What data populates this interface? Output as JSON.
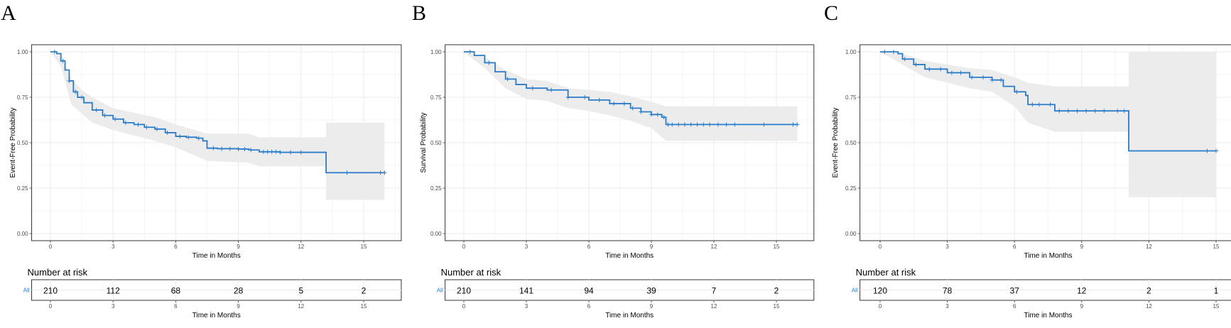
{
  "colors": {
    "curve": "#2A7CC9",
    "band": "#EBEBEB",
    "grid": "#EBEBEB",
    "border": "#333333"
  },
  "chart_data": [
    {
      "panel": "A",
      "type": "line",
      "ylabel": "Event-Free Probability",
      "xlabel": "Time in Months",
      "xlim": [
        0,
        16.2
      ],
      "ylim": [
        0,
        1
      ],
      "x_ticks": [
        0,
        3,
        6,
        9,
        12,
        15
      ],
      "y_ticks": [
        0.0,
        0.25,
        0.5,
        0.75,
        1.0
      ],
      "y_tick_labels": [
        "0.00",
        "0.25",
        "0.50",
        "0.75",
        "1.00"
      ],
      "grid": true,
      "confidence_band": true,
      "curve": [
        [
          0,
          1.0
        ],
        [
          0.3,
          0.99
        ],
        [
          0.5,
          0.95
        ],
        [
          0.7,
          0.9
        ],
        [
          0.9,
          0.84
        ],
        [
          1.1,
          0.78
        ],
        [
          1.3,
          0.75
        ],
        [
          1.6,
          0.72
        ],
        [
          2.0,
          0.68
        ],
        [
          2.5,
          0.65
        ],
        [
          3.0,
          0.63
        ],
        [
          3.5,
          0.61
        ],
        [
          4.0,
          0.6
        ],
        [
          4.5,
          0.585
        ],
        [
          5.0,
          0.575
        ],
        [
          5.5,
          0.555
        ],
        [
          6.0,
          0.535
        ],
        [
          6.5,
          0.53
        ],
        [
          7.0,
          0.525
        ],
        [
          7.3,
          0.51
        ],
        [
          7.5,
          0.47
        ],
        [
          8.0,
          0.467
        ],
        [
          9.0,
          0.465
        ],
        [
          9.5,
          0.46
        ],
        [
          10.0,
          0.45
        ],
        [
          11.0,
          0.447
        ],
        [
          12.0,
          0.447
        ],
        [
          13.2,
          0.447
        ],
        [
          13.2,
          0.335
        ],
        [
          16.0,
          0.335
        ]
      ],
      "band_upper": [
        [
          0,
          1.0
        ],
        [
          0.5,
          0.97
        ],
        [
          1.0,
          0.85
        ],
        [
          1.5,
          0.79
        ],
        [
          2.0,
          0.75
        ],
        [
          3.0,
          0.69
        ],
        [
          4.0,
          0.665
        ],
        [
          5.0,
          0.64
        ],
        [
          6.0,
          0.6
        ],
        [
          7.5,
          0.55
        ],
        [
          9.5,
          0.55
        ],
        [
          10.0,
          0.53
        ],
        [
          13.2,
          0.53
        ],
        [
          13.2,
          0.61
        ],
        [
          16.0,
          0.61
        ]
      ],
      "band_lower": [
        [
          0,
          1.0
        ],
        [
          0.5,
          0.92
        ],
        [
          1.0,
          0.71
        ],
        [
          1.5,
          0.66
        ],
        [
          2.0,
          0.61
        ],
        [
          3.0,
          0.57
        ],
        [
          4.0,
          0.54
        ],
        [
          5.0,
          0.51
        ],
        [
          6.0,
          0.475
        ],
        [
          7.5,
          0.4
        ],
        [
          9.5,
          0.39
        ],
        [
          10.0,
          0.37
        ],
        [
          13.2,
          0.37
        ],
        [
          13.2,
          0.185
        ],
        [
          16.0,
          0.185
        ]
      ],
      "censor_x": [
        0.2,
        0.6,
        0.9,
        1.2,
        1.5,
        2.2,
        2.6,
        3.1,
        3.6,
        4.2,
        4.6,
        5.1,
        5.6,
        6.2,
        6.6,
        7.1,
        7.8,
        8.2,
        8.6,
        9.0,
        9.3,
        9.6,
        10.2,
        10.4,
        10.6,
        10.8,
        11.0,
        11.5,
        12.0,
        14.2,
        15.8,
        16.0
      ],
      "risk": {
        "title": "Number at risk",
        "strata": "All",
        "values": [
          "210",
          "112",
          "68",
          "28",
          "5",
          "2"
        ],
        "xlabel": "Time in Months"
      }
    },
    {
      "panel": "B",
      "type": "line",
      "ylabel": "Survival Probability",
      "xlabel": "Time in Months",
      "xlim": [
        0,
        16.2
      ],
      "ylim": [
        0,
        1
      ],
      "x_ticks": [
        0,
        3,
        6,
        9,
        12,
        15
      ],
      "y_ticks": [
        0.0,
        0.25,
        0.5,
        0.75,
        1.0
      ],
      "y_tick_labels": [
        "0.00",
        "0.25",
        "0.50",
        "0.75",
        "1.00"
      ],
      "grid": true,
      "confidence_band": true,
      "curve": [
        [
          0,
          1.0
        ],
        [
          0.5,
          0.98
        ],
        [
          1.0,
          0.94
        ],
        [
          1.5,
          0.89
        ],
        [
          2.0,
          0.85
        ],
        [
          2.5,
          0.82
        ],
        [
          3.0,
          0.8
        ],
        [
          4.0,
          0.79
        ],
        [
          5.0,
          0.75
        ],
        [
          6.0,
          0.735
        ],
        [
          7.0,
          0.715
        ],
        [
          8.0,
          0.69
        ],
        [
          8.5,
          0.67
        ],
        [
          9.0,
          0.655
        ],
        [
          9.5,
          0.64
        ],
        [
          9.7,
          0.6
        ],
        [
          12.0,
          0.6
        ],
        [
          16.0,
          0.6
        ]
      ],
      "band_upper": [
        [
          0,
          1.0
        ],
        [
          1.0,
          0.97
        ],
        [
          2.0,
          0.9
        ],
        [
          3.0,
          0.85
        ],
        [
          4.0,
          0.84
        ],
        [
          5.0,
          0.8
        ],
        [
          6.0,
          0.79
        ],
        [
          7.0,
          0.78
        ],
        [
          8.0,
          0.755
        ],
        [
          9.0,
          0.725
        ],
        [
          9.7,
          0.7
        ],
        [
          16.0,
          0.7
        ]
      ],
      "band_lower": [
        [
          0,
          1.0
        ],
        [
          1.0,
          0.91
        ],
        [
          2.0,
          0.8
        ],
        [
          3.0,
          0.74
        ],
        [
          4.0,
          0.73
        ],
        [
          5.0,
          0.69
        ],
        [
          6.0,
          0.675
        ],
        [
          7.0,
          0.65
        ],
        [
          8.0,
          0.62
        ],
        [
          9.0,
          0.58
        ],
        [
          9.7,
          0.51
        ],
        [
          16.0,
          0.51
        ]
      ],
      "censor_x": [
        0.3,
        1.2,
        2.1,
        3.3,
        4.2,
        5.0,
        5.8,
        6.5,
        7.2,
        7.7,
        8.1,
        8.5,
        9.0,
        9.3,
        9.6,
        9.8,
        10.0,
        10.3,
        10.6,
        10.9,
        11.2,
        11.5,
        11.8,
        12.2,
        12.6,
        13.0,
        14.4,
        15.8,
        16.0
      ],
      "risk": {
        "title": "Number at risk",
        "strata": "All",
        "values": [
          "210",
          "141",
          "94",
          "39",
          "7",
          "2"
        ],
        "xlabel": "Time in Months"
      }
    },
    {
      "panel": "C",
      "type": "line",
      "ylabel": "Event-Free Probability",
      "xlabel": "Time in Months",
      "xlim": [
        0,
        15.3
      ],
      "ylim": [
        0,
        1
      ],
      "x_ticks": [
        0,
        3,
        6,
        9,
        12,
        15
      ],
      "y_ticks": [
        0.0,
        0.25,
        0.5,
        0.75,
        1.0
      ],
      "y_tick_labels": [
        "0.00",
        "0.25",
        "0.50",
        "0.75",
        "1.00"
      ],
      "grid": true,
      "confidence_band": true,
      "curve": [
        [
          0,
          1.0
        ],
        [
          0.8,
          0.99
        ],
        [
          1.0,
          0.96
        ],
        [
          1.5,
          0.93
        ],
        [
          2.0,
          0.905
        ],
        [
          3.0,
          0.885
        ],
        [
          4.0,
          0.86
        ],
        [
          5.0,
          0.845
        ],
        [
          5.5,
          0.81
        ],
        [
          6.0,
          0.78
        ],
        [
          6.5,
          0.76
        ],
        [
          6.6,
          0.71
        ],
        [
          7.5,
          0.71
        ],
        [
          7.8,
          0.675
        ],
        [
          10.5,
          0.675
        ],
        [
          11.1,
          0.675
        ],
        [
          11.1,
          0.455
        ],
        [
          15.0,
          0.455
        ]
      ],
      "band_upper": [
        [
          0,
          1.0
        ],
        [
          1.0,
          0.99
        ],
        [
          2.0,
          0.95
        ],
        [
          3.0,
          0.93
        ],
        [
          4.0,
          0.91
        ],
        [
          5.0,
          0.9
        ],
        [
          6.0,
          0.86
        ],
        [
          6.6,
          0.83
        ],
        [
          7.8,
          0.81
        ],
        [
          11.1,
          0.81
        ],
        [
          11.1,
          1.0
        ],
        [
          15.0,
          1.0
        ]
      ],
      "band_lower": [
        [
          0,
          1.0
        ],
        [
          1.0,
          0.93
        ],
        [
          2.0,
          0.86
        ],
        [
          3.0,
          0.83
        ],
        [
          4.0,
          0.8
        ],
        [
          5.0,
          0.78
        ],
        [
          6.0,
          0.7
        ],
        [
          6.6,
          0.61
        ],
        [
          7.8,
          0.56
        ],
        [
          11.1,
          0.56
        ],
        [
          11.1,
          0.2
        ],
        [
          15.0,
          0.2
        ]
      ],
      "censor_x": [
        0.2,
        0.6,
        1.1,
        1.6,
        2.2,
        2.7,
        3.2,
        3.6,
        4.1,
        4.6,
        5.0,
        5.4,
        6.1,
        6.8,
        7.1,
        7.6,
        8.0,
        8.4,
        8.8,
        9.2,
        9.6,
        10.0,
        10.6,
        10.9,
        14.6,
        15.0
      ],
      "risk": {
        "title": "Number at risk",
        "strata": "All",
        "values": [
          "120",
          "78",
          "37",
          "12",
          "2",
          "1"
        ],
        "xlabel": "Time in Months"
      }
    }
  ]
}
